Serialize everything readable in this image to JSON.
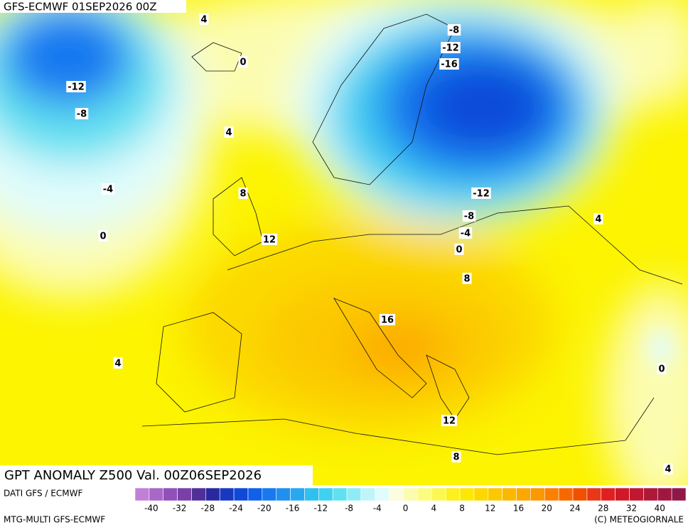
{
  "header": {
    "title": "GFS-ECMWF 01SEP2026 00Z"
  },
  "map": {
    "title": "GPT ANOMALY Z500 Val. 00Z06SEP2026",
    "contour_labels": [
      4,
      0,
      -12,
      -8,
      4,
      -4,
      0,
      8,
      12,
      -8,
      -12,
      -16,
      -12,
      -8,
      -4,
      0,
      8,
      16,
      4,
      0,
      12,
      8,
      4,
      4
    ]
  },
  "footer": {
    "source": "DATI GFS / ECMWF",
    "model": "MTG-MULTI GFS-ECMWF",
    "credit": "(C) METEOGIORNALE"
  },
  "legend": {
    "labels": [
      -40,
      -32,
      -28,
      -24,
      -20,
      -16,
      -12,
      -8,
      -4,
      0,
      4,
      8,
      12,
      16,
      20,
      24,
      28,
      32,
      40
    ],
    "colors": [
      "#c080d8",
      "#a868c8",
      "#9050b8",
      "#7840a8",
      "#503098",
      "#2828a0",
      "#1838c0",
      "#1048d8",
      "#1060e8",
      "#1878f0",
      "#2090f0",
      "#28a8f0",
      "#30c0f0",
      "#40d0f0",
      "#60e0f0",
      "#90ecf4",
      "#c0f4f8",
      "#e0fcfc",
      "#fcfce0",
      "#fcfcb0",
      "#fcfc80",
      "#fcf850",
      "#fcf020",
      "#fce800",
      "#fcd800",
      "#fcc800",
      "#fcb800",
      "#fca800",
      "#fc9800",
      "#fc8000",
      "#f86800",
      "#f05000",
      "#e83818",
      "#e02020",
      "#d01828",
      "#c01830",
      "#b01838",
      "#a01840",
      "#901848"
    ]
  }
}
